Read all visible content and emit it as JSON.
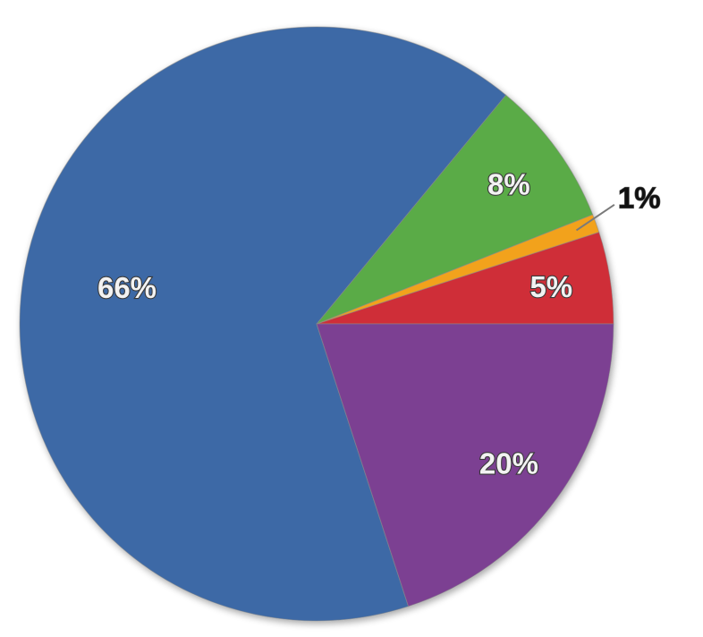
{
  "chart_data": {
    "type": "pie",
    "title": "",
    "start_angle_deg": 0,
    "direction": "counterclockwise",
    "slices": [
      {
        "label": "5%",
        "value": 5,
        "color": "#cf2e38"
      },
      {
        "label": "1%",
        "value": 1,
        "color": "#f2a21b"
      },
      {
        "label": "8%",
        "value": 8,
        "color": "#5aab46"
      },
      {
        "label": "66%",
        "value": 66,
        "color": "#3c69a6"
      },
      {
        "label": "20%",
        "value": 20,
        "color": "#7c3f92"
      }
    ],
    "legend": "none"
  }
}
